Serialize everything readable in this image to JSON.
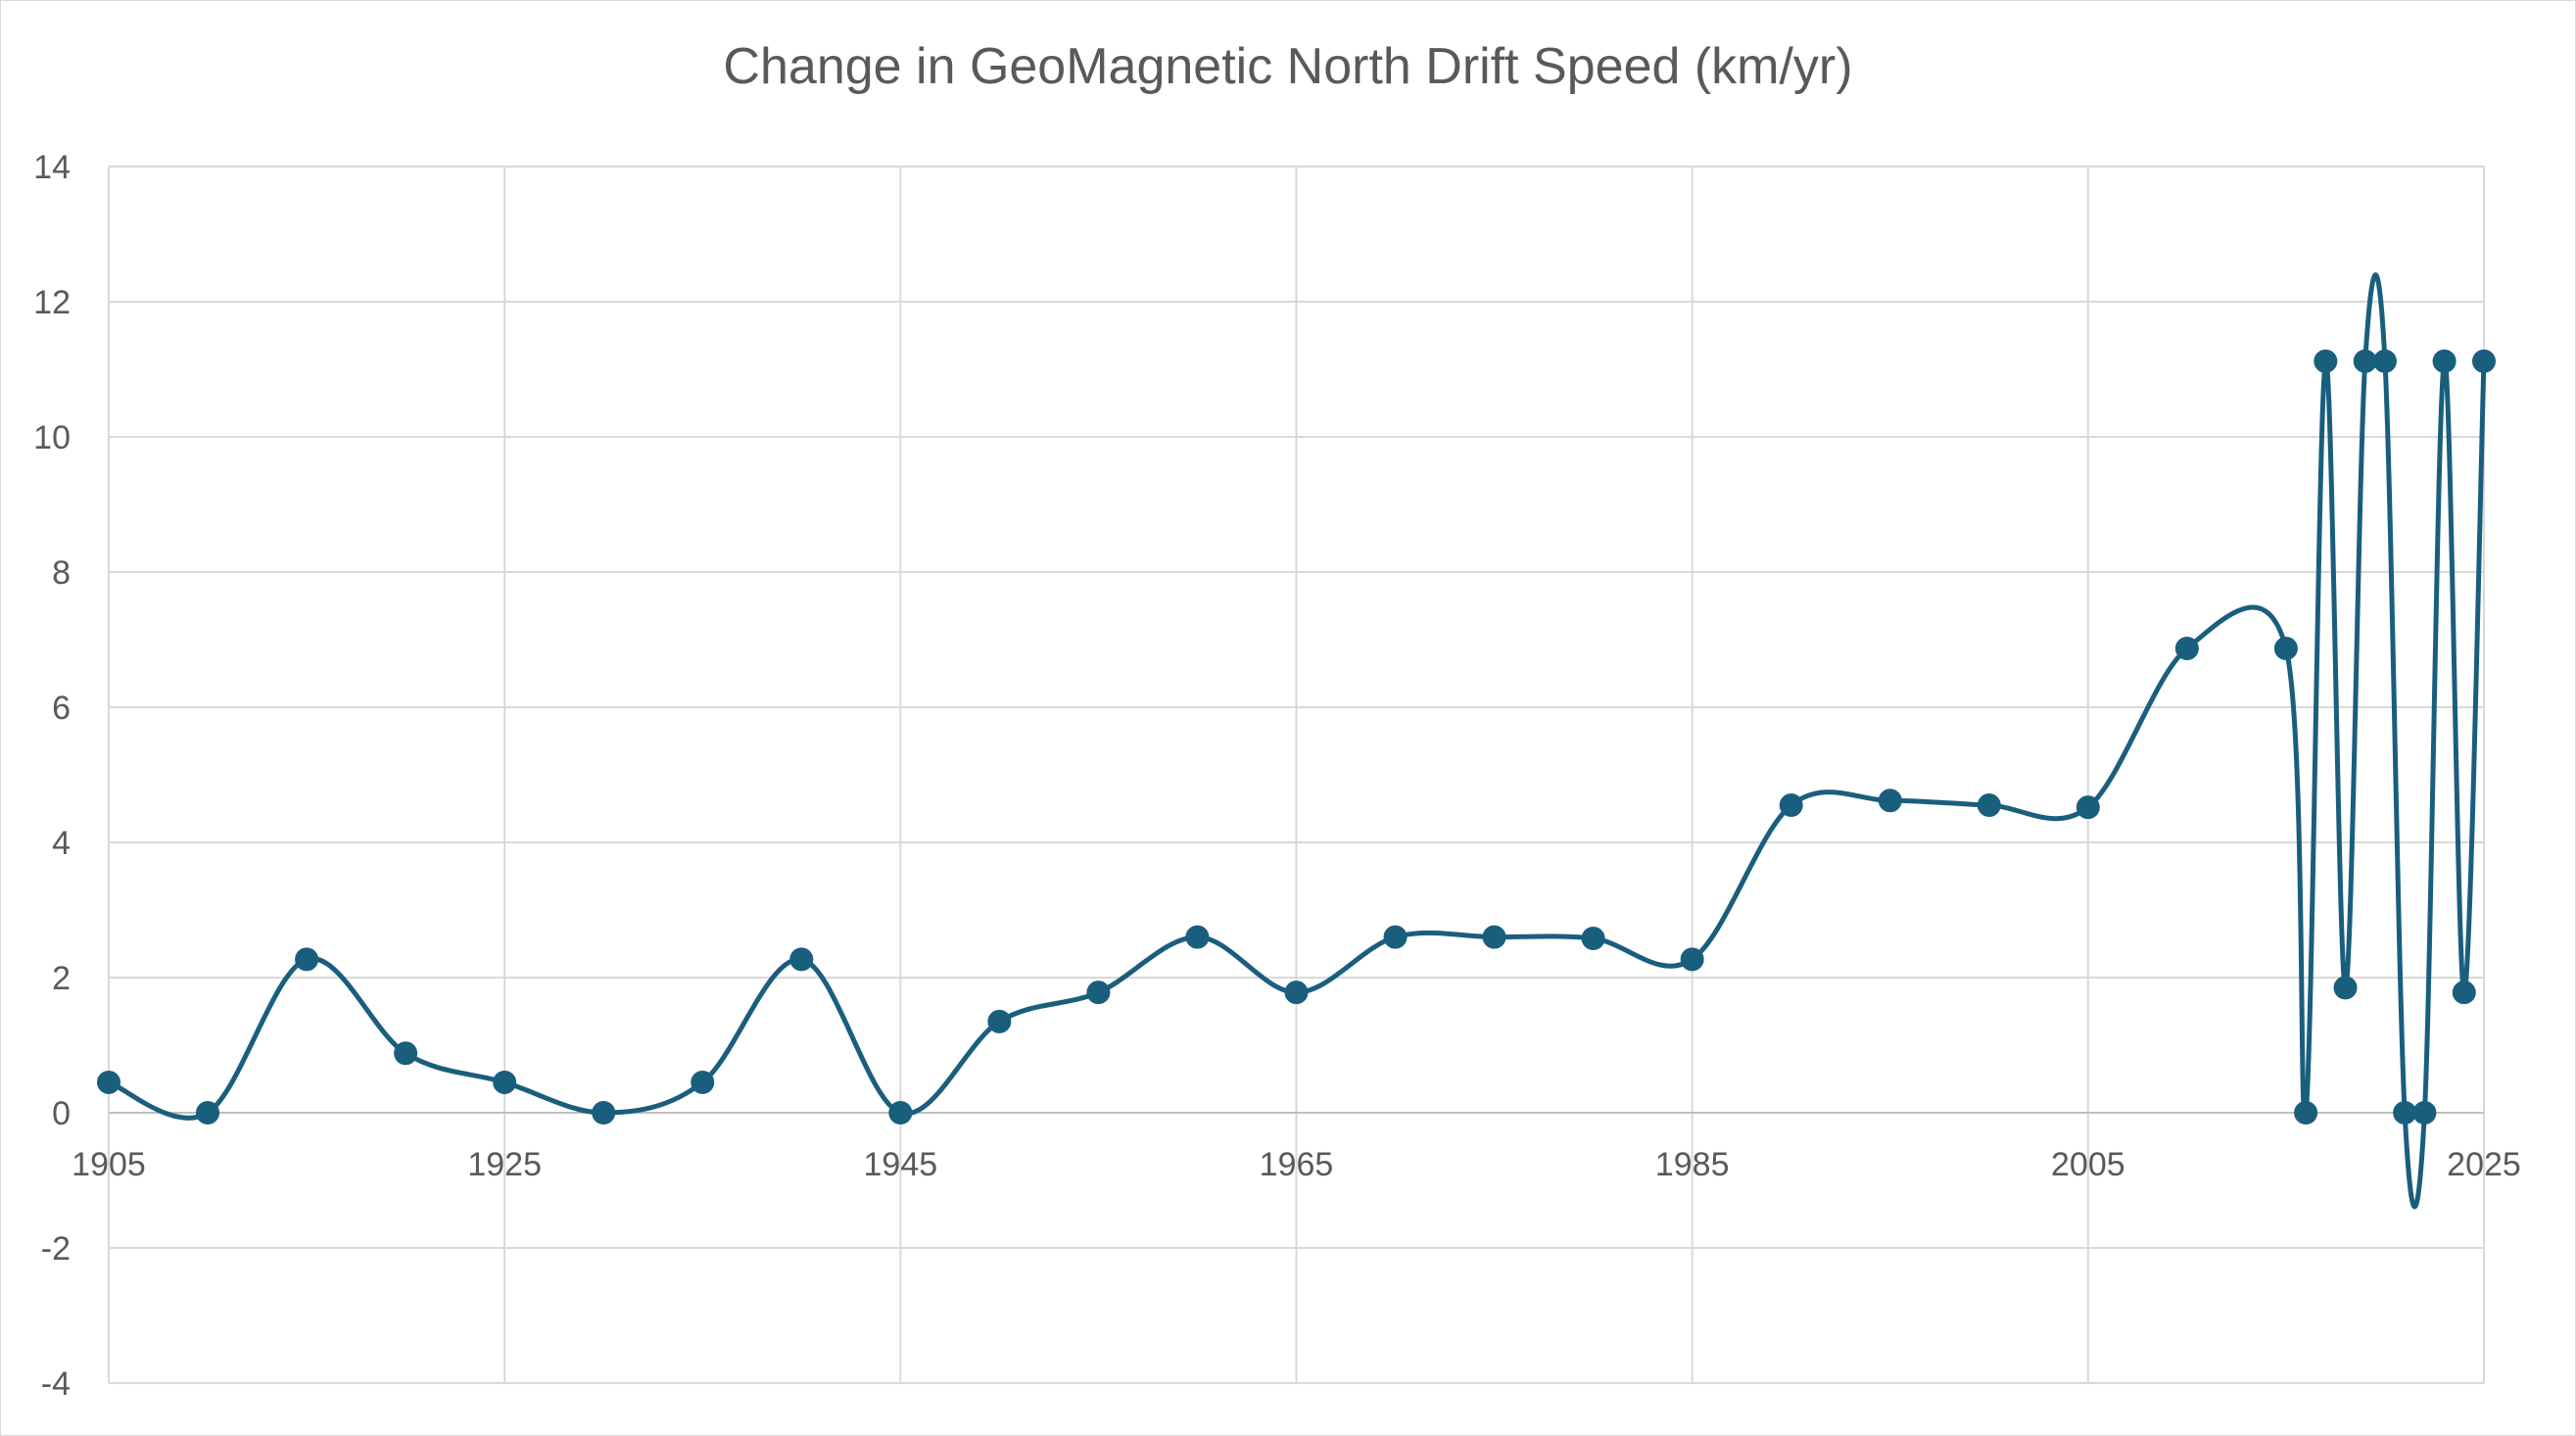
{
  "chart_data": {
    "type": "line",
    "title": "Change in GeoMagnetic North Drift Speed (km/yr)",
    "xlabel": "",
    "ylabel": "",
    "xlim": [
      1905,
      2025
    ],
    "ylim": [
      -4,
      14
    ],
    "x_ticks": [
      1905,
      1925,
      1945,
      1965,
      1985,
      2005,
      2025
    ],
    "y_ticks": [
      -4,
      -2,
      0,
      2,
      4,
      6,
      8,
      10,
      12,
      14
    ],
    "grid": true,
    "legend": "none",
    "smooth": true,
    "color": "#1a5e7e",
    "series": [
      {
        "x": [
          1905,
          1910,
          1915,
          1920,
          1925,
          1930,
          1935,
          1940,
          1945,
          1950,
          1955,
          1960,
          1965,
          1970,
          1975,
          1980,
          1985,
          1990,
          1995,
          2000,
          2005,
          2010,
          2015,
          2016,
          2017,
          2018,
          2019,
          2020,
          2021,
          2022,
          2023,
          2024,
          2025
        ],
        "y": [
          0.45,
          0,
          2.27,
          0.88,
          0.45,
          0,
          0.45,
          2.27,
          0,
          1.35,
          1.78,
          2.6,
          1.78,
          2.6,
          2.6,
          2.58,
          2.27,
          4.55,
          4.62,
          4.55,
          4.52,
          6.87,
          6.87,
          0,
          11.12,
          1.85,
          11.12,
          11.12,
          0,
          0,
          11.12,
          1.78,
          11.12
        ]
      }
    ]
  }
}
